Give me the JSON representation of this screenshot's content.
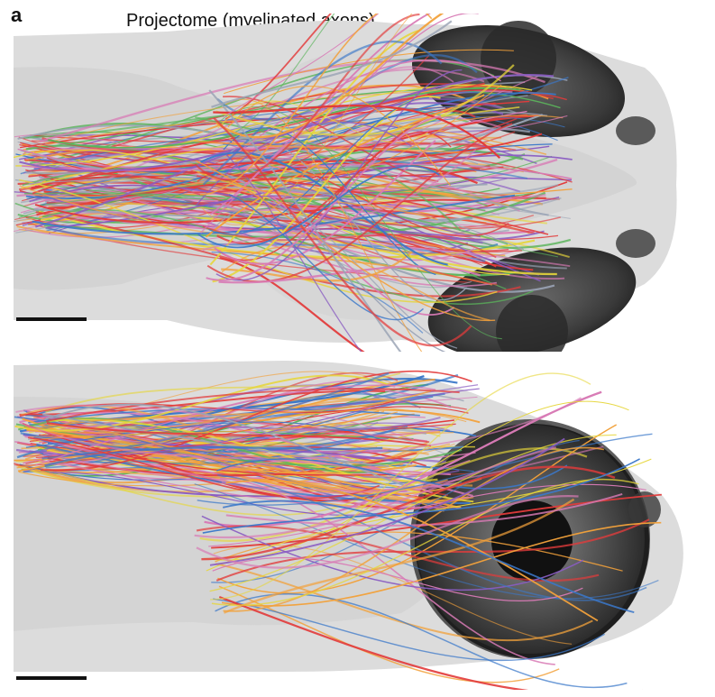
{
  "figure": {
    "panel_letter": "a",
    "title": "Projectome (myelinated axons)"
  },
  "views": [
    "dorsal",
    "lateral"
  ],
  "colors": {
    "background": "#ffffff",
    "tissue": "#d9d9d9",
    "eye": "#3a3a3a",
    "axon_palette": [
      "#e23b3b",
      "#f2a13b",
      "#e6d63a",
      "#5bb55b",
      "#3b78c9",
      "#8a5cc2",
      "#d87ab5",
      "#9aa3b5"
    ]
  }
}
